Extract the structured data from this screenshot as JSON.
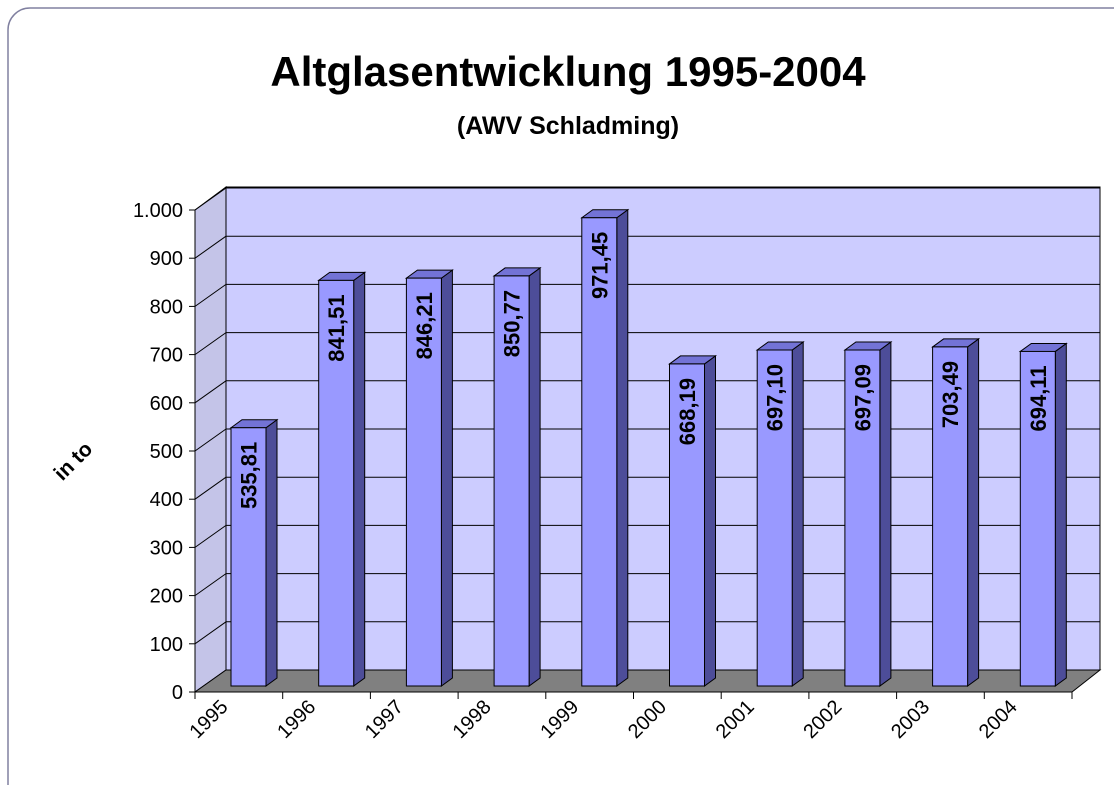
{
  "chart_data": {
    "type": "bar",
    "title": "Altglasentwicklung 1995-2004",
    "subtitle": "(AWV Schladming)",
    "y_label": "in to",
    "categories": [
      "1995",
      "1996",
      "1997",
      "1998",
      "1999",
      "2000",
      "2001",
      "2002",
      "2003",
      "2004"
    ],
    "values": [
      535.81,
      841.51,
      846.21,
      850.77,
      971.45,
      668.19,
      697.1,
      697.09,
      703.49,
      694.11
    ],
    "value_labels": [
      "535,81",
      "841,51",
      "846,21",
      "850,77",
      "971,45",
      "668,19",
      "697,10",
      "697,09",
      "703,49",
      "694,11"
    ],
    "color": "#9999ff",
    "ylim": [
      0,
      1000
    ],
    "yticks": [
      0,
      100,
      200,
      300,
      400,
      500,
      600,
      700,
      800,
      900,
      {
        "value": 1000,
        "label": "1.000"
      }
    ],
    "grid": true
  }
}
